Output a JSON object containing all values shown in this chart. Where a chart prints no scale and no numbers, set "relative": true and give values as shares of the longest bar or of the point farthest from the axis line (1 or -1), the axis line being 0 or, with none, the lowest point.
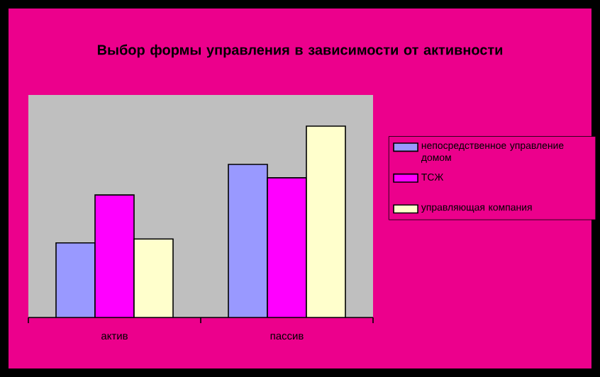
{
  "chart_data": {
    "type": "bar",
    "title": "Выбор формы управления в зависимости от активности",
    "categories": [
      "актив",
      "пассив"
    ],
    "relative": true,
    "legend": "right",
    "series": [
      {
        "name": "непосредственное управление домом",
        "color": "#9999ff",
        "values": [
          0.39,
          0.8
        ]
      },
      {
        "name": "ТСЖ",
        "color": "#ff00ff",
        "values": [
          0.64,
          0.73
        ]
      },
      {
        "name": "управляющая компания",
        "color": "#ffffcc",
        "values": [
          0.41,
          1
        ]
      }
    ]
  }
}
